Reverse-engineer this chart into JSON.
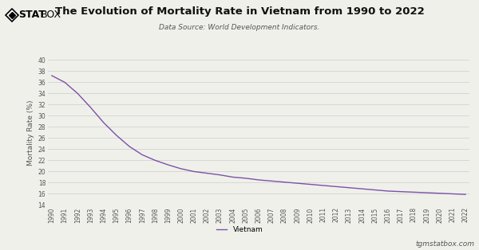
{
  "title": "The Evolution of Mortality Rate in Vietnam from 1990 to 2022",
  "subtitle": "Data Source: World Development Indicators.",
  "ylabel": "Mortality Rate (%)",
  "legend_label": "Vietnam",
  "watermark": "tgmstatbox.com",
  "line_color": "#7b52a6",
  "background_color": "#f0f0eb",
  "plot_background": "#f0f0eb",
  "ylim": [
    14,
    40
  ],
  "yticks": [
    14,
    16,
    18,
    20,
    22,
    24,
    26,
    28,
    30,
    32,
    34,
    36,
    38,
    40
  ],
  "years": [
    1990,
    1991,
    1992,
    1993,
    1994,
    1995,
    1996,
    1997,
    1998,
    1999,
    2000,
    2001,
    2002,
    2003,
    2004,
    2005,
    2006,
    2007,
    2008,
    2009,
    2010,
    2011,
    2012,
    2013,
    2014,
    2015,
    2016,
    2017,
    2018,
    2019,
    2020,
    2021,
    2022
  ],
  "values": [
    37.2,
    36.0,
    34.0,
    31.5,
    28.8,
    26.5,
    24.5,
    23.0,
    22.0,
    21.2,
    20.5,
    20.0,
    19.7,
    19.4,
    19.0,
    18.8,
    18.5,
    18.3,
    18.1,
    17.9,
    17.7,
    17.5,
    17.3,
    17.1,
    16.9,
    16.7,
    16.5,
    16.4,
    16.3,
    16.2,
    16.1,
    16.0,
    15.9
  ],
  "title_fontsize": 9.5,
  "subtitle_fontsize": 6.5,
  "tick_fontsize": 5.5,
  "ylabel_fontsize": 6.5,
  "legend_fontsize": 6.5,
  "watermark_fontsize": 6.5,
  "logo_fontsize": 9,
  "grid_color": "#cccccc",
  "tick_color": "#555555",
  "title_color": "#111111",
  "subtitle_color": "#555555",
  "watermark_color": "#555555"
}
